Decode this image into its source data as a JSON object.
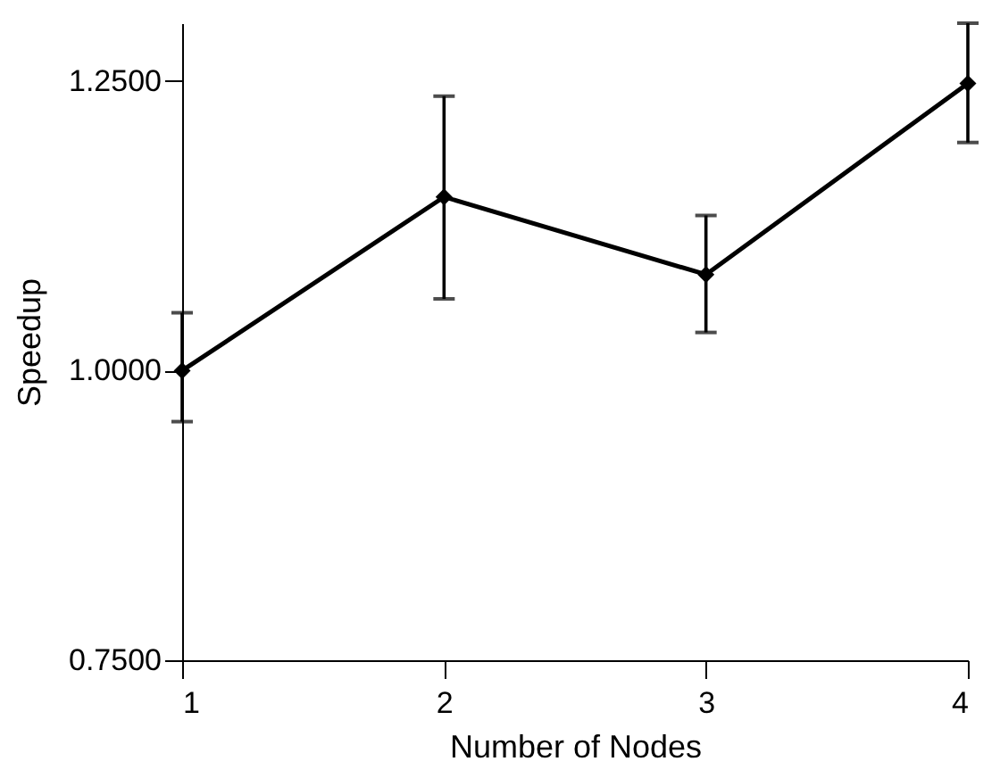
{
  "chart_data": {
    "type": "line",
    "xlabel": "Number of Nodes",
    "ylabel": "Speedup",
    "x": [
      1,
      2,
      3,
      4
    ],
    "series": [
      {
        "color": "#000000",
        "values": [
          1.0,
          1.15,
          1.083,
          1.248
        ],
        "errors": [
          [
            0.956,
            1.05
          ],
          [
            1.062,
            1.237
          ],
          [
            1.033,
            1.134
          ],
          [
            1.197,
            1.3
          ]
        ]
      }
    ],
    "xlim": [
      1,
      4
    ],
    "xticks": [
      1,
      2,
      3,
      4
    ],
    "ylim": [
      0.75,
      1.3
    ],
    "yticks": [
      {
        "value": 0.75,
        "label": "0.7500"
      },
      {
        "value": 1.0,
        "label": "1.0000"
      },
      {
        "value": 1.25,
        "label": "1.2500"
      }
    ],
    "grid": false,
    "marker": "diamond",
    "line_style": "solid"
  }
}
